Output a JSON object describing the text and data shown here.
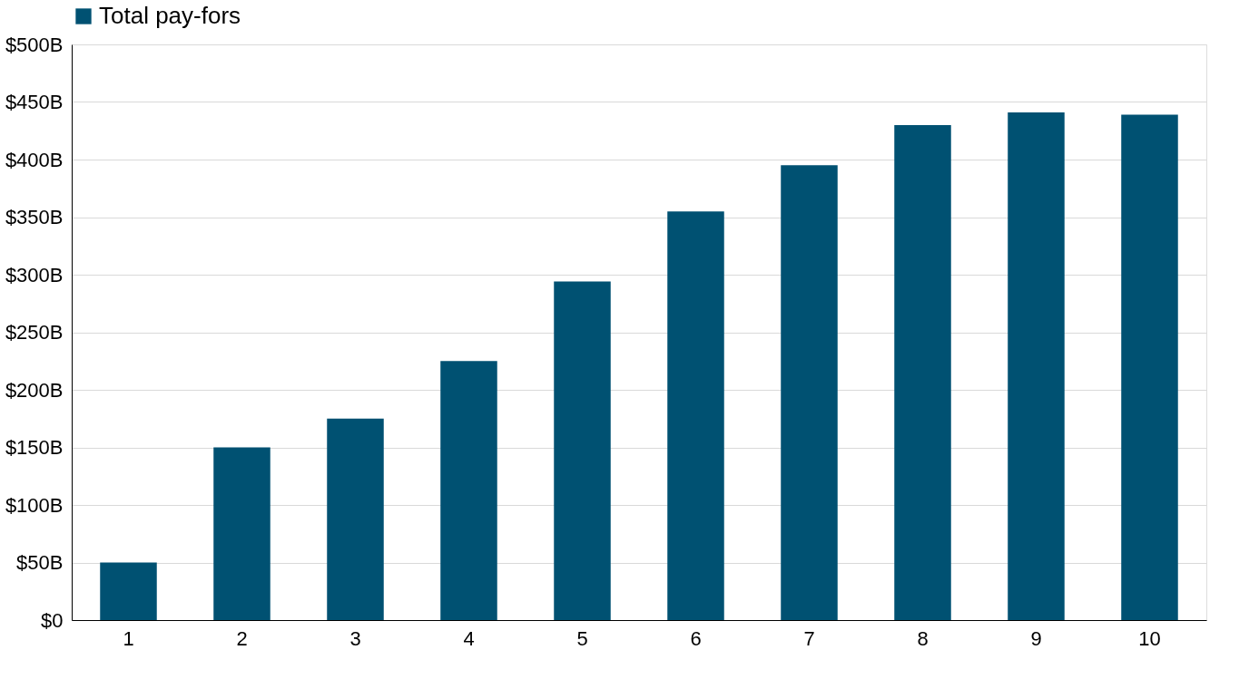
{
  "chart_data": {
    "type": "bar",
    "categories": [
      "1",
      "2",
      "3",
      "4",
      "5",
      "6",
      "7",
      "8",
      "9",
      "10"
    ],
    "series": [
      {
        "name": "Total pay-fors",
        "color": "#005172",
        "values": [
          50,
          150,
          175,
          225,
          294,
          355,
          395,
          430,
          441,
          439
        ]
      }
    ],
    "ylim": [
      0,
      500
    ],
    "yticks": [
      {
        "value": 0,
        "label": "$0"
      },
      {
        "value": 50,
        "label": "$50B"
      },
      {
        "value": 100,
        "label": "$100B"
      },
      {
        "value": 150,
        "label": "$150B"
      },
      {
        "value": 200,
        "label": "$200B"
      },
      {
        "value": 250,
        "label": "$250B"
      },
      {
        "value": 300,
        "label": "$300B"
      },
      {
        "value": 350,
        "label": "$350B"
      },
      {
        "value": 400,
        "label": "$400B"
      },
      {
        "value": 450,
        "label": "$450B"
      },
      {
        "value": 500,
        "label": "$500B"
      }
    ],
    "grid": "y",
    "legend": "top"
  }
}
